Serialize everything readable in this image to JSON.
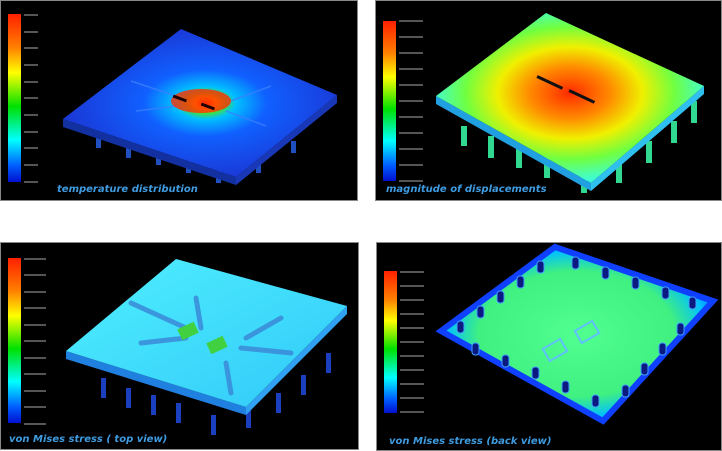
{
  "panels": [
    {
      "id": "temperature",
      "caption": "temperature distribution"
    },
    {
      "id": "displacement",
      "caption": "magnitude of displacements"
    },
    {
      "id": "stress-top",
      "caption": "von Mises stress ( top view)"
    },
    {
      "id": "stress-back",
      "caption": "von Mises stress (back view)"
    }
  ],
  "colors": {
    "background": "#000000",
    "caption": "#3f9be0",
    "colormap": [
      "#ff2000",
      "#ff8000",
      "#ffff00",
      "#00e000",
      "#00ffff",
      "#0060ff",
      "#0010d0"
    ]
  }
}
